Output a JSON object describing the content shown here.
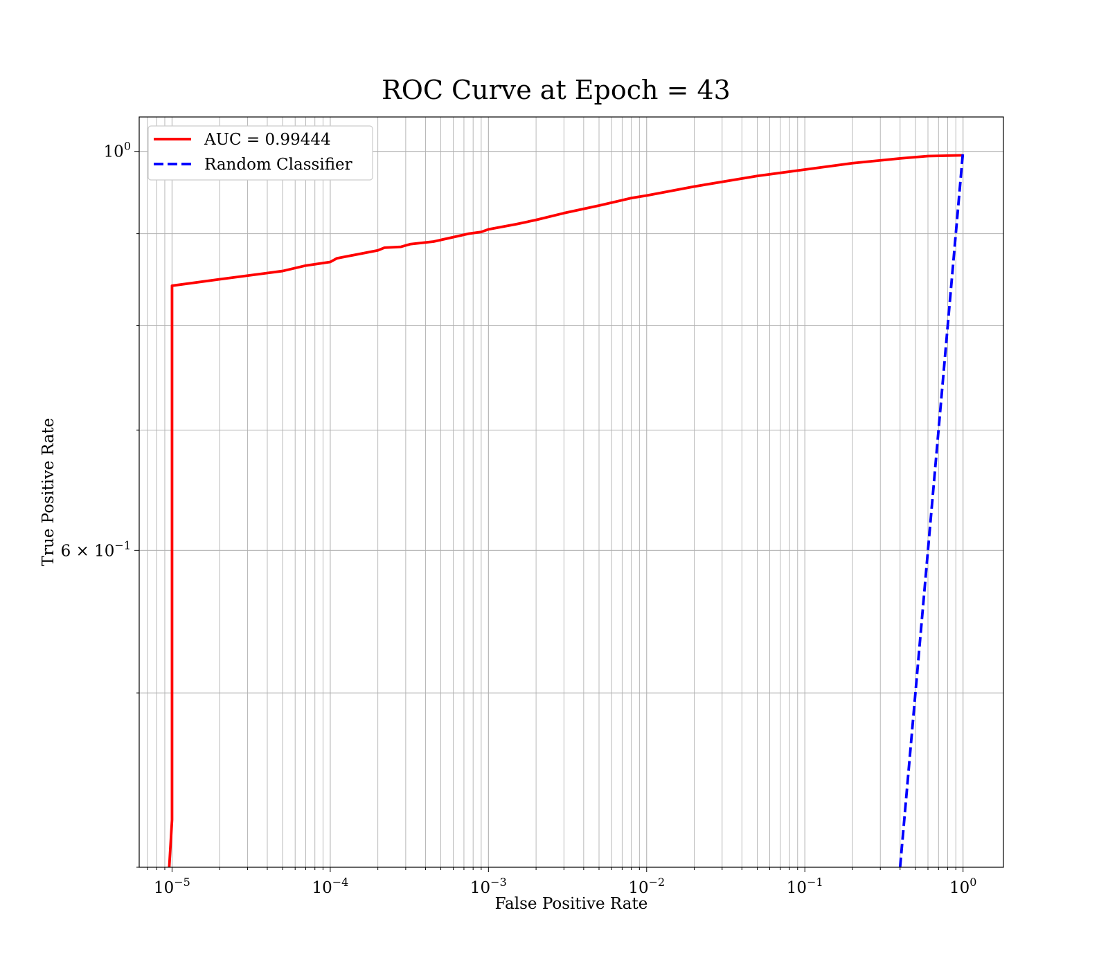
{
  "chart_data": {
    "type": "line",
    "title": "ROC Curve at Epoch = 43",
    "xlabel": "False Positive Rate",
    "ylabel": "True Positive Rate",
    "xscale": "log",
    "yscale": "log",
    "xlim": [
      6.2e-06,
      1.8
    ],
    "ylim": [
      0.4,
      1.045
    ],
    "grid": true,
    "grid_minor": true,
    "legend_position": "top-left",
    "x_ticks": [
      {
        "base": "10",
        "exp": "−5"
      },
      {
        "base": "10",
        "exp": "−4"
      },
      {
        "base": "10",
        "exp": "−3"
      },
      {
        "base": "10",
        "exp": "−2"
      },
      {
        "base": "10",
        "exp": "−1"
      },
      {
        "base": "10",
        "exp": "0"
      }
    ],
    "y_ticks": [
      {
        "mant": "",
        "base": "10",
        "exp": "0"
      },
      {
        "mant": "6 × ",
        "base": "10",
        "exp": "−1"
      }
    ],
    "series": [
      {
        "name": "AUC = 0.99444",
        "color": "#ff0000",
        "style": "solid",
        "x": [
          9.6e-06,
          1e-05,
          1e-05,
          1e-05,
          2e-05,
          5e-05,
          7e-05,
          0.0001,
          0.00011,
          0.0002,
          0.00022,
          0.00028,
          0.00032,
          0.00045,
          0.0006,
          0.00075,
          0.0009,
          0.001,
          0.0015,
          0.002,
          0.003,
          0.005,
          0.008,
          0.01,
          0.02,
          0.05,
          0.1,
          0.2,
          0.4,
          0.6,
          1.0
        ],
        "y": [
          0.4,
          0.425,
          0.78,
          0.842,
          0.849,
          0.858,
          0.864,
          0.868,
          0.872,
          0.881,
          0.884,
          0.885,
          0.888,
          0.891,
          0.896,
          0.9,
          0.902,
          0.905,
          0.911,
          0.916,
          0.924,
          0.933,
          0.942,
          0.945,
          0.956,
          0.969,
          0.977,
          0.985,
          0.991,
          0.994,
          0.995
        ]
      },
      {
        "name": "Random Classifier",
        "color": "#0000ff",
        "style": "dashed",
        "x": [
          0.4,
          1.0
        ],
        "y": [
          0.4,
          1.0
        ]
      }
    ]
  }
}
